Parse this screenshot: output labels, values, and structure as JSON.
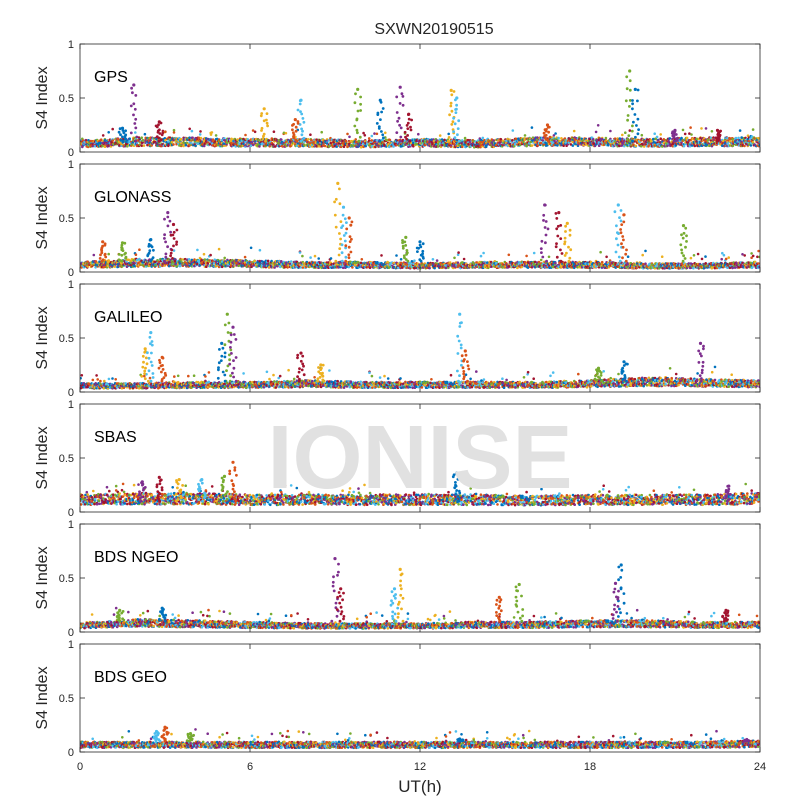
{
  "chart_data": {
    "type": "scatter",
    "title": "SXWN20190515",
    "xlabel": "UT(h)",
    "ylabel": "S4 Index",
    "xlim": [
      0,
      24
    ],
    "ylim": [
      0,
      1
    ],
    "x_ticks": [
      "0",
      "6",
      "12",
      "18",
      "24"
    ],
    "y_ticks": [
      "0",
      "0.5",
      "1"
    ],
    "watermark": "IONISE",
    "marker_colors": [
      "#0072bd",
      "#d95319",
      "#edb120",
      "#7e2f8e",
      "#77ac30",
      "#4dbeee",
      "#a2142f"
    ],
    "panels": [
      {
        "name": "GPS",
        "baseline": [
          0.08,
          0.1,
          0.1,
          0.09,
          0.09,
          0.08,
          0.09,
          0.08,
          0.1,
          0.1,
          0.09,
          0.1,
          0.1
        ],
        "spikes": [
          {
            "x": 1.5,
            "y": 0.22
          },
          {
            "x": 1.9,
            "y": 0.62
          },
          {
            "x": 2.8,
            "y": 0.28
          },
          {
            "x": 6.5,
            "y": 0.4
          },
          {
            "x": 7.8,
            "y": 0.48
          },
          {
            "x": 7.6,
            "y": 0.3
          },
          {
            "x": 9.8,
            "y": 0.58
          },
          {
            "x": 10.6,
            "y": 0.48
          },
          {
            "x": 11.3,
            "y": 0.6
          },
          {
            "x": 11.6,
            "y": 0.35
          },
          {
            "x": 13.1,
            "y": 0.57
          },
          {
            "x": 13.3,
            "y": 0.5
          },
          {
            "x": 16.5,
            "y": 0.25
          },
          {
            "x": 19.4,
            "y": 0.75
          },
          {
            "x": 19.6,
            "y": 0.58
          },
          {
            "x": 21.0,
            "y": 0.2
          },
          {
            "x": 22.5,
            "y": 0.2
          }
        ]
      },
      {
        "name": "GLONASS",
        "baseline": [
          0.07,
          0.09,
          0.09,
          0.08,
          0.07,
          0.07,
          0.06,
          0.07,
          0.07,
          0.07,
          0.06,
          0.06,
          0.07
        ],
        "spikes": [
          {
            "x": 0.8,
            "y": 0.28
          },
          {
            "x": 1.5,
            "y": 0.27
          },
          {
            "x": 2.5,
            "y": 0.3
          },
          {
            "x": 3.1,
            "y": 0.55
          },
          {
            "x": 3.3,
            "y": 0.44
          },
          {
            "x": 9.1,
            "y": 0.82
          },
          {
            "x": 9.3,
            "y": 0.6
          },
          {
            "x": 9.5,
            "y": 0.5
          },
          {
            "x": 11.5,
            "y": 0.32
          },
          {
            "x": 12.0,
            "y": 0.28
          },
          {
            "x": 16.4,
            "y": 0.62
          },
          {
            "x": 16.9,
            "y": 0.55
          },
          {
            "x": 17.2,
            "y": 0.45
          },
          {
            "x": 19.0,
            "y": 0.62
          },
          {
            "x": 19.2,
            "y": 0.53
          },
          {
            "x": 21.3,
            "y": 0.43
          }
        ]
      },
      {
        "name": "GALILEO",
        "baseline": [
          0.06,
          0.06,
          0.07,
          0.07,
          0.08,
          0.07,
          0.07,
          0.07,
          0.07,
          0.08,
          0.1,
          0.09,
          0.08
        ],
        "spikes": [
          {
            "x": 2.3,
            "y": 0.4
          },
          {
            "x": 2.5,
            "y": 0.55
          },
          {
            "x": 2.9,
            "y": 0.32
          },
          {
            "x": 5.2,
            "y": 0.72
          },
          {
            "x": 5.0,
            "y": 0.45
          },
          {
            "x": 5.4,
            "y": 0.6
          },
          {
            "x": 7.8,
            "y": 0.36
          },
          {
            "x": 8.5,
            "y": 0.25
          },
          {
            "x": 13.4,
            "y": 0.72
          },
          {
            "x": 13.6,
            "y": 0.38
          },
          {
            "x": 18.3,
            "y": 0.22
          },
          {
            "x": 19.2,
            "y": 0.28
          },
          {
            "x": 21.9,
            "y": 0.45
          }
        ]
      },
      {
        "name": "SBAS",
        "baseline": [
          0.12,
          0.13,
          0.13,
          0.12,
          0.12,
          0.12,
          0.12,
          0.12,
          0.11,
          0.12,
          0.12,
          0.12,
          0.13
        ],
        "spikes": [
          {
            "x": 2.2,
            "y": 0.28
          },
          {
            "x": 2.8,
            "y": 0.32
          },
          {
            "x": 3.5,
            "y": 0.3
          },
          {
            "x": 4.3,
            "y": 0.3
          },
          {
            "x": 5.4,
            "y": 0.46
          },
          {
            "x": 5.1,
            "y": 0.33
          },
          {
            "x": 13.3,
            "y": 0.36
          },
          {
            "x": 22.9,
            "y": 0.24
          }
        ]
      },
      {
        "name": "BDS NGEO",
        "baseline": [
          0.06,
          0.09,
          0.08,
          0.07,
          0.06,
          0.06,
          0.06,
          0.07,
          0.07,
          0.08,
          0.08,
          0.07,
          0.07
        ],
        "spikes": [
          {
            "x": 1.4,
            "y": 0.2
          },
          {
            "x": 2.9,
            "y": 0.22
          },
          {
            "x": 9.0,
            "y": 0.68
          },
          {
            "x": 9.2,
            "y": 0.4
          },
          {
            "x": 11.3,
            "y": 0.58
          },
          {
            "x": 11.1,
            "y": 0.4
          },
          {
            "x": 14.8,
            "y": 0.32
          },
          {
            "x": 15.5,
            "y": 0.44
          },
          {
            "x": 19.1,
            "y": 0.62
          },
          {
            "x": 18.9,
            "y": 0.45
          },
          {
            "x": 22.8,
            "y": 0.2
          }
        ]
      },
      {
        "name": "BDS GEO",
        "baseline": [
          0.07,
          0.07,
          0.07,
          0.07,
          0.07,
          0.07,
          0.07,
          0.07,
          0.07,
          0.07,
          0.07,
          0.07,
          0.08
        ],
        "spikes": [
          {
            "x": 2.7,
            "y": 0.19
          },
          {
            "x": 3.0,
            "y": 0.23
          },
          {
            "x": 3.9,
            "y": 0.17
          },
          {
            "x": 13.4,
            "y": 0.12
          },
          {
            "x": 23.5,
            "y": 0.11
          }
        ]
      }
    ]
  }
}
